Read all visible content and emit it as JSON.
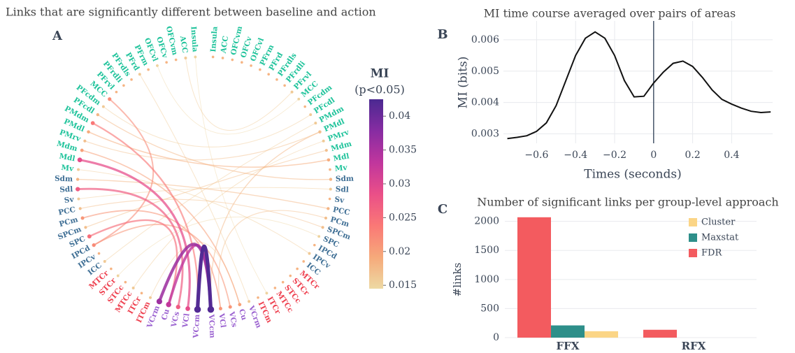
{
  "chart_data": [
    {
      "type": "chord",
      "panel": "A",
      "title": "Links that are significantly different between baseline and action",
      "groups": [
        {
          "color": "#1fc39b",
          "labels": [
            "Insula",
            "ACC",
            "OFCvm",
            "OFCv",
            "OFCvl",
            "PFrm",
            "PFrd",
            "PFrdls",
            "PFrdli",
            "PFrvl",
            "MCC",
            "PFcdm",
            "PFcdl",
            "PMdm",
            "PMdl",
            "PMrv",
            "Mdm",
            "Mdl",
            "Mv"
          ]
        },
        {
          "color": "#3f6f95",
          "labels": [
            "Sdm",
            "Sdl",
            "Sv",
            "PCC",
            "PCm",
            "SPCm",
            "SPC",
            "IPCd",
            "IPCv",
            "ICC"
          ]
        },
        {
          "color": "#ee4150",
          "labels": [
            "MTCr",
            "STCr",
            "STCc",
            "MTCc",
            "ITCr",
            "ITCm"
          ]
        },
        {
          "color": "#9b62d0",
          "labels": [
            "VCrm",
            "Cu",
            "VCs",
            "VCl",
            "VCcm"
          ]
        }
      ],
      "links": [
        {
          "source": "VCcm",
          "source_side": "left",
          "target": "VCcm",
          "target_side": "right",
          "value": 0.042
        },
        {
          "source": "VCrm",
          "source_side": "left",
          "target": "VCcm",
          "target_side": "right",
          "value": 0.036
        },
        {
          "source": "Cu",
          "source_side": "left",
          "target": "VCcm",
          "target_side": "right",
          "value": 0.033
        },
        {
          "source": "Mdl",
          "source_side": "left",
          "target": "VCl",
          "target_side": "left",
          "value": 0.029
        },
        {
          "source": "Sdl",
          "source_side": "left",
          "target": "VCs",
          "target_side": "left",
          "value": 0.027
        },
        {
          "source": "SPC",
          "source_side": "left",
          "target": "Cu",
          "target_side": "left",
          "value": 0.025
        },
        {
          "source": "PMdm",
          "source_side": "left",
          "target": "VCcm",
          "target_side": "left",
          "value": 0.024
        },
        {
          "source": "MCC",
          "source_side": "left",
          "target": "IPCd",
          "target_side": "left",
          "value": 0.022
        },
        {
          "source": "PCm",
          "source_side": "left",
          "target": "VCl",
          "target_side": "right",
          "value": 0.021
        },
        {
          "source": "IPCd",
          "source_side": "left",
          "target": "VCs",
          "target_side": "right",
          "value": 0.021
        },
        {
          "source": "Mdm",
          "source_side": "left",
          "target": "Cu",
          "target_side": "right",
          "value": 0.02
        },
        {
          "source": "PMdl",
          "source_side": "left",
          "target": "Mdl",
          "target_side": "right",
          "value": 0.019
        },
        {
          "source": "PFcdl",
          "source_side": "left",
          "target": "Sdm",
          "target_side": "right",
          "value": 0.018
        },
        {
          "source": "PMrv",
          "source_side": "left",
          "target": "PMdl",
          "target_side": "right",
          "value": 0.017
        },
        {
          "source": "Sdm",
          "source_side": "left",
          "target": "PCC",
          "target_side": "right",
          "value": 0.018
        },
        {
          "source": "PCC",
          "source_side": "left",
          "target": "SPCm",
          "target_side": "right",
          "value": 0.017
        },
        {
          "source": "Mv",
          "source_side": "left",
          "target": "IPCv",
          "target_side": "right",
          "value": 0.016
        },
        {
          "source": "ACC",
          "source_side": "left",
          "target": "PFrvl",
          "target_side": "right",
          "value": 0.016
        },
        {
          "source": "OFCvl",
          "source_side": "left",
          "target": "MCC",
          "target_side": "right",
          "value": 0.015
        },
        {
          "source": "PFrd",
          "source_side": "left",
          "target": "VCrm",
          "target_side": "right",
          "value": 0.016
        },
        {
          "source": "Insula",
          "source_side": "left",
          "target": "ITCr",
          "target_side": "right",
          "value": 0.015
        },
        {
          "source": "MTCc",
          "source_side": "left",
          "target": "PMrv",
          "target_side": "right",
          "value": 0.016
        },
        {
          "source": "Sv",
          "source_side": "left",
          "target": "Sdl",
          "target_side": "right",
          "value": 0.016
        },
        {
          "source": "SPCm",
          "source_side": "left",
          "target": "Mdm",
          "target_side": "right",
          "value": 0.017
        },
        {
          "source": "PFcdm",
          "source_side": "left",
          "target": "PFcdl",
          "target_side": "right",
          "value": 0.016
        },
        {
          "source": "ITCm",
          "source_side": "left",
          "target": "Cu",
          "target_side": "right",
          "value": 0.016
        },
        {
          "source": "PMdl",
          "source_side": "right",
          "target": "VCcm",
          "target_side": "right",
          "value": 0.018
        },
        {
          "source": "PCm",
          "source_side": "right",
          "target": "VCl",
          "target_side": "right",
          "value": 0.017
        },
        {
          "source": "ICC",
          "source_side": "left",
          "target": "PMdm",
          "target_side": "right",
          "value": 0.016
        },
        {
          "source": "STCr",
          "source_side": "left",
          "target": "SPC",
          "target_side": "right",
          "value": 0.015
        }
      ],
      "colorbar_title": "MI",
      "colorbar_subtitle": "(p<0.05)",
      "clim": [
        0.0145,
        0.0425
      ],
      "cticks": [
        0.015,
        0.02,
        0.025,
        0.03,
        0.035,
        0.04
      ],
      "colorscale": [
        "#edd9a3",
        "#f6a97a",
        "#fa7876",
        "#ea4f88",
        "#c0369d",
        "#872ca2",
        "#4b2991"
      ]
    },
    {
      "type": "line",
      "panel": "B",
      "title": "MI time course averaged over pairs of areas",
      "xlabel": "Times (seconds)",
      "ylabel": "MI (bits)",
      "x": [
        -0.75,
        -0.7,
        -0.65,
        -0.6,
        -0.55,
        -0.5,
        -0.45,
        -0.4,
        -0.35,
        -0.3,
        -0.25,
        -0.2,
        -0.15,
        -0.1,
        -0.05,
        0,
        0.05,
        0.1,
        0.15,
        0.2,
        0.25,
        0.3,
        0.35,
        0.4,
        0.45,
        0.5,
        0.55,
        0.6
      ],
      "values": [
        0.00285,
        0.00289,
        0.00294,
        0.00308,
        0.00335,
        0.0039,
        0.0047,
        0.0055,
        0.00605,
        0.00625,
        0.00605,
        0.0055,
        0.0047,
        0.00418,
        0.0042,
        0.00462,
        0.00497,
        0.00525,
        0.00532,
        0.00515,
        0.0048,
        0.0044,
        0.0041,
        0.00395,
        0.00382,
        0.00372,
        0.00368,
        0.0037
      ],
      "color": "#111111",
      "vline": 0,
      "xlim": [
        -0.77,
        0.61
      ],
      "ylim": [
        0.0027,
        0.0066
      ],
      "xticks": [
        {
          "value": -0.6,
          "label": "−0.6"
        },
        {
          "value": -0.4,
          "label": "−0.4"
        },
        {
          "value": -0.2,
          "label": "−0.2"
        },
        0,
        0.2,
        0.4
      ],
      "yticks": [
        0.003,
        0.004,
        0.005,
        0.006
      ],
      "grid": true
    },
    {
      "type": "bar",
      "panel": "C",
      "title": "Number of significant links per group-level approach",
      "ylabel": "#links",
      "categories": [
        "FFX",
        "RFX"
      ],
      "series": [
        {
          "name": "Cluster",
          "color": "#fbd586",
          "values": [
            110,
            0
          ]
        },
        {
          "name": "Maxstat",
          "color": "#2e8f8a",
          "values": [
            210,
            0
          ]
        },
        {
          "name": "FDR",
          "color": "#f35b5f",
          "values": [
            2070,
            135
          ]
        }
      ],
      "ylim": [
        0,
        2200
      ],
      "yticks": [
        0,
        500,
        1000,
        1500,
        2000
      ],
      "grid": true,
      "legend": "upper right"
    }
  ]
}
